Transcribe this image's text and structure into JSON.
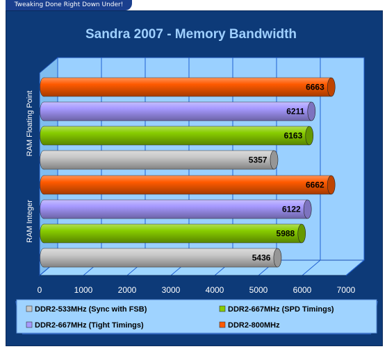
{
  "banner": {
    "text": "Tweaking Done Right Down Under!"
  },
  "colors": {
    "panel": "#0d3a78",
    "title": "#9fd0ff",
    "plot_back": "#9ad0ff",
    "grid": "#2060d0",
    "floor": "#9fd6ff",
    "legend_bg": "#9fd3ff"
  },
  "chart_data": {
    "type": "bar",
    "orientation": "horizontal",
    "title": "Sandra 2007 - Memory Bandwidth",
    "categories": [
      "RAM Floating Point",
      "RAM Integer"
    ],
    "series": [
      {
        "name": "DDR2-533MHz (Sync with FSB)",
        "color": "#c8c8c8",
        "values": [
          5357,
          5436
        ]
      },
      {
        "name": "DDR2-667MHz (SPD Timings)",
        "color": "#88cc00",
        "values": [
          6163,
          5988
        ]
      },
      {
        "name": "DDR2-667MHz (Tight Timings)",
        "color": "#a699ff",
        "values": [
          6211,
          6122
        ]
      },
      {
        "name": "DDR2-800MHz",
        "color": "#ff5a00",
        "values": [
          6663,
          6662
        ]
      }
    ],
    "xlim": [
      0,
      7000
    ],
    "xticks": [
      "0",
      "1000",
      "2000",
      "3000",
      "4000",
      "5000",
      "6000",
      "7000"
    ],
    "grid": true,
    "legend_position": "bottom"
  }
}
